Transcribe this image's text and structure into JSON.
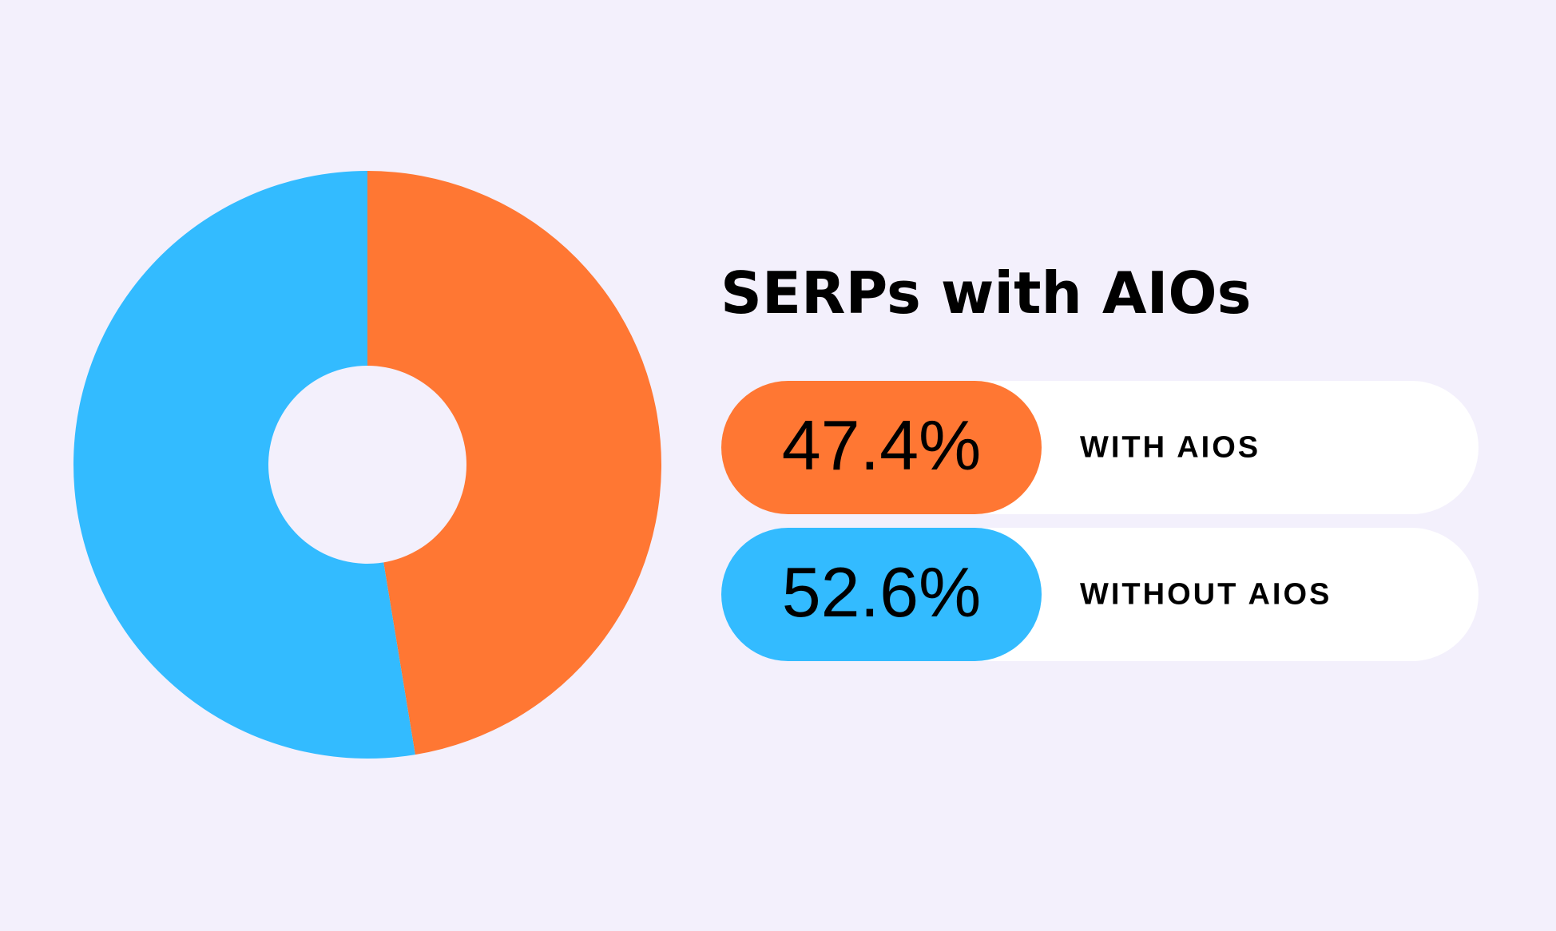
{
  "chart_data": {
    "type": "pie",
    "donut": true,
    "title": "SERPs with AIOs",
    "categories": [
      "WITH AIOS",
      "WITHOUT AIOS"
    ],
    "values": [
      47.4,
      52.6
    ],
    "value_labels": [
      "47.4%",
      "52.6%"
    ],
    "colors": [
      "#ff7733",
      "#33bbff"
    ]
  }
}
